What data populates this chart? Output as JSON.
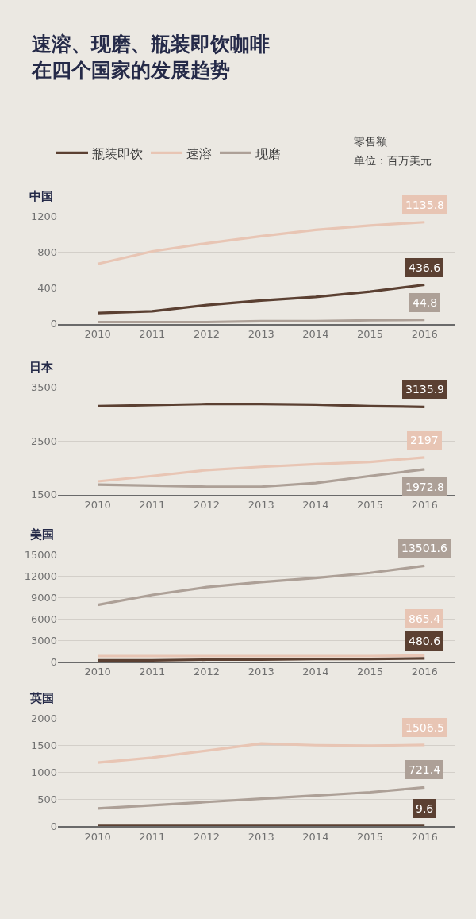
{
  "chart_data": [
    {
      "type": "other",
      "title": "速溶、现磨、瓶装即饮咖啡在四个国家的发展趋势",
      "annotations": [
        "零售额",
        "单位：百万美元"
      ]
    },
    {
      "type": "line",
      "title": "中国",
      "categories": [
        "2010",
        "2011",
        "2012",
        "2013",
        "2014",
        "2015",
        "2016"
      ],
      "ylim": [
        0,
        1200
      ],
      "yticks": [
        0,
        400,
        800,
        1200
      ],
      "grid": "y",
      "legend": "top",
      "series": [
        {
          "name": "瓶装即饮",
          "color": "#5b4032",
          "values": [
            120,
            140,
            210,
            260,
            300,
            360,
            436.6
          ],
          "value_labels": [
            null,
            null,
            null,
            null,
            null,
            null,
            "436.6"
          ]
        },
        {
          "name": "速溶",
          "color": "#e8c5b4",
          "values": [
            670,
            810,
            900,
            980,
            1050,
            1100,
            1135.8
          ],
          "value_labels": [
            null,
            null,
            null,
            null,
            null,
            null,
            "1135.8"
          ]
        },
        {
          "name": "现磨",
          "color": "#ada097",
          "values": [
            20,
            20,
            20,
            30,
            30,
            40,
            44.8
          ],
          "value_labels": [
            null,
            null,
            null,
            null,
            null,
            null,
            "44.8"
          ]
        }
      ]
    },
    {
      "type": "line",
      "title": "日本",
      "categories": [
        "2010",
        "2011",
        "2012",
        "2013",
        "2014",
        "2015",
        "2016"
      ],
      "ylim": [
        1500,
        3500
      ],
      "yticks": [
        1500,
        2500,
        3500
      ],
      "grid": "y",
      "series": [
        {
          "color": "#5b4032",
          "values": [
            3150,
            3170,
            3190,
            3190,
            3180,
            3150,
            3135.9
          ],
          "value_labels": [
            null,
            null,
            null,
            null,
            null,
            null,
            "3135.9"
          ]
        },
        {
          "color": "#e8c5b4",
          "values": [
            1750,
            1850,
            1960,
            2020,
            2070,
            2110,
            2197
          ],
          "value_labels": [
            null,
            null,
            null,
            null,
            null,
            null,
            "2197"
          ]
        },
        {
          "color": "#ada097",
          "values": [
            1690,
            1670,
            1650,
            1650,
            1720,
            1850,
            1972.8
          ],
          "value_labels": [
            null,
            null,
            null,
            null,
            null,
            null,
            "1972.8"
          ]
        }
      ]
    },
    {
      "type": "line",
      "title": "美国",
      "categories": [
        "2010",
        "2011",
        "2012",
        "2013",
        "2014",
        "2015",
        "2016"
      ],
      "ylim": [
        0,
        15000
      ],
      "yticks": [
        0,
        3000,
        6000,
        9000,
        12000,
        15000
      ],
      "grid": "y",
      "series": [
        {
          "color": "#5b4032",
          "values": [
            200,
            200,
            300,
            300,
            400,
            400,
            480.6
          ],
          "value_labels": [
            null,
            null,
            null,
            null,
            null,
            null,
            "480.6"
          ]
        },
        {
          "color": "#e8c5b4",
          "values": [
            800,
            800,
            800,
            800,
            800,
            800,
            865.4
          ],
          "value_labels": [
            null,
            null,
            null,
            null,
            null,
            null,
            "865.4"
          ]
        },
        {
          "color": "#ada097",
          "values": [
            8000,
            9400,
            10500,
            11200,
            11800,
            12500,
            13501.6
          ],
          "value_labels": [
            null,
            null,
            null,
            null,
            null,
            null,
            "13501.6"
          ]
        }
      ]
    },
    {
      "type": "line",
      "title": "英国",
      "categories": [
        "2010",
        "2011",
        "2012",
        "2013",
        "2014",
        "2015",
        "2016"
      ],
      "ylim": [
        0,
        2000
      ],
      "yticks": [
        0,
        500,
        1000,
        1500,
        2000
      ],
      "grid": "y",
      "series": [
        {
          "color": "#5b4032",
          "values": [
            10,
            10,
            10,
            10,
            10,
            10,
            9.6
          ],
          "value_labels": [
            null,
            null,
            null,
            null,
            null,
            null,
            "9.6"
          ]
        },
        {
          "color": "#e8c5b4",
          "values": [
            1180,
            1270,
            1400,
            1530,
            1500,
            1490,
            1506.5
          ],
          "value_labels": [
            null,
            null,
            null,
            null,
            null,
            null,
            "1506.5"
          ]
        },
        {
          "color": "#ada097",
          "values": [
            330,
            390,
            450,
            510,
            570,
            630,
            721.4
          ],
          "value_labels": [
            null,
            null,
            null,
            null,
            null,
            null,
            "721.4"
          ]
        }
      ]
    }
  ]
}
